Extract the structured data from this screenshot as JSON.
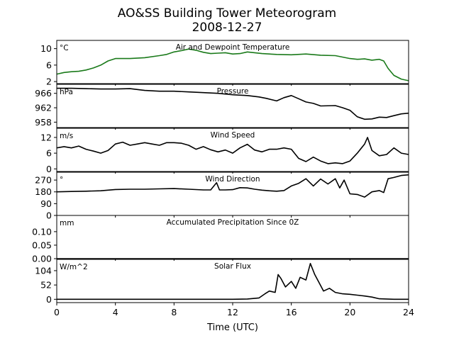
{
  "title_line1": "AO&SS Building Tower Meteorogram",
  "title_line2": "2008-12-27",
  "xlabel": "Time (UTC)",
  "x_ticks": [
    0,
    4,
    8,
    12,
    16,
    20,
    24
  ],
  "chart_data": [
    {
      "type": "line",
      "title": "Air and Dewpoint Temperature",
      "unit": "°C",
      "xlim": [
        0,
        24
      ],
      "ylim": [
        1.5,
        12
      ],
      "yticks": [
        2,
        6,
        10
      ],
      "series": [
        {
          "color": "#1a7a1a",
          "x": [
            0,
            0.5,
            1,
            1.5,
            2,
            2.5,
            3,
            3.5,
            4,
            4.5,
            5,
            6,
            7,
            7.5,
            8,
            8.5,
            9,
            9.5,
            10,
            10.5,
            11,
            11.5,
            12,
            12.5,
            13,
            13.5,
            14,
            15,
            16,
            17,
            18,
            19,
            20,
            20.5,
            21,
            21.5,
            22,
            22.3,
            22.6,
            23,
            23.5,
            24
          ],
          "y": [
            3.8,
            4.2,
            4.4,
            4.5,
            4.8,
            5.3,
            6.0,
            7.0,
            7.6,
            7.6,
            7.6,
            7.8,
            8.3,
            8.6,
            9.2,
            9.5,
            9.9,
            9.6,
            9.1,
            8.8,
            8.9,
            9.0,
            8.7,
            8.8,
            9.2,
            9.0,
            8.8,
            8.6,
            8.5,
            8.7,
            8.4,
            8.3,
            7.6,
            7.4,
            7.5,
            7.2,
            7.4,
            7.0,
            5.2,
            3.5,
            2.6,
            2.2
          ]
        }
      ]
    },
    {
      "type": "line",
      "title": "Pressure",
      "unit": "hPa",
      "xlim": [
        0,
        24
      ],
      "ylim": [
        956.5,
        968.5
      ],
      "yticks": [
        958,
        962,
        966
      ],
      "series": [
        {
          "color": "#000000",
          "x": [
            0,
            1,
            2,
            3,
            4,
            5,
            6,
            7,
            8,
            9,
            10,
            11,
            12,
            13,
            13.8,
            14.3,
            15,
            15.5,
            16,
            16.5,
            17,
            17.5,
            18,
            19,
            19.5,
            20,
            20.5,
            21,
            21.5,
            22,
            22.5,
            23,
            23.5,
            24
          ],
          "y": [
            967.4,
            967.4,
            967.3,
            967.2,
            967.2,
            967.3,
            966.8,
            966.6,
            966.6,
            966.4,
            966.2,
            966.0,
            965.6,
            965.4,
            965.0,
            964.6,
            963.9,
            964.8,
            965.4,
            964.5,
            963.6,
            963.2,
            962.5,
            962.6,
            962.0,
            961.3,
            959.5,
            958.8,
            958.9,
            959.4,
            959.3,
            959.8,
            960.3,
            960.5
          ]
        }
      ]
    },
    {
      "type": "line",
      "title": "Wind Speed",
      "unit": "m/s",
      "xlim": [
        0,
        24
      ],
      "ylim": [
        -1,
        15.5
      ],
      "yticks": [
        0,
        6,
        12
      ],
      "series": [
        {
          "color": "#000000",
          "x": [
            0,
            0.5,
            1,
            1.5,
            2,
            2.5,
            3,
            3.5,
            4,
            4.5,
            5,
            5.5,
            6,
            6.5,
            7,
            7.5,
            8,
            8.5,
            9,
            9.5,
            10,
            10.5,
            11,
            11.5,
            12,
            12.5,
            13,
            13.5,
            14,
            14.5,
            15,
            15.5,
            16,
            16.5,
            17,
            17.5,
            18,
            18.5,
            19,
            19.5,
            20,
            20.5,
            21,
            21.2,
            21.5,
            22,
            22.5,
            23,
            23.5,
            24
          ],
          "y": [
            8,
            8.5,
            8,
            8.7,
            7.5,
            6.8,
            6,
            7,
            9.5,
            10.2,
            9,
            9.5,
            10,
            9.5,
            9,
            10,
            10,
            9.8,
            9,
            7.5,
            8.5,
            7.3,
            6.5,
            7.2,
            6,
            8,
            9.4,
            7.2,
            6.5,
            7.5,
            7.5,
            8,
            7.5,
            4,
            2.8,
            4.5,
            3,
            2,
            2.3,
            2,
            3,
            6,
            9.5,
            12,
            7,
            5,
            5.5,
            8,
            6,
            5.5
          ]
        }
      ]
    },
    {
      "type": "line",
      "title": "Wind Direction",
      "unit": "°",
      "xlim": [
        0,
        24
      ],
      "ylim": [
        0,
        330
      ],
      "yticks": [
        0,
        90,
        180,
        270
      ],
      "series": [
        {
          "color": "#000000",
          "x": [
            0,
            1,
            2,
            3,
            4,
            5,
            6,
            7,
            8,
            9,
            10,
            10.5,
            10.9,
            11.1,
            11.5,
            12,
            12.5,
            13,
            13.5,
            14,
            14.5,
            15,
            15.5,
            16,
            16.5,
            17,
            17.5,
            18,
            18.5,
            19,
            19.3,
            19.6,
            20,
            20.5,
            21,
            21.5,
            22,
            22.3,
            22.6,
            23,
            23.5,
            24
          ],
          "y": [
            180,
            183,
            185,
            188,
            198,
            200,
            200,
            203,
            205,
            200,
            195,
            195,
            250,
            195,
            195,
            197,
            212,
            210,
            200,
            193,
            188,
            185,
            190,
            225,
            245,
            280,
            225,
            278,
            240,
            280,
            210,
            270,
            165,
            160,
            140,
            180,
            190,
            175,
            280,
            290,
            305,
            310
          ]
        }
      ]
    },
    {
      "type": "line",
      "title": "Accumulated Precipitation Since 0Z",
      "unit": "mm",
      "xlim": [
        0,
        24
      ],
      "ylim": [
        0,
        0.16
      ],
      "yticks": [
        0.0,
        0.05,
        0.1
      ],
      "series": [
        {
          "color": "#000000",
          "x": [
            0,
            24
          ],
          "y": [
            0,
            0
          ]
        }
      ]
    },
    {
      "type": "line",
      "title": "Solar Flux",
      "unit": "W/m^2",
      "xlim": [
        0,
        24
      ],
      "ylim": [
        -12,
        145
      ],
      "yticks": [
        0,
        52,
        104
      ],
      "series": [
        {
          "color": "#000000",
          "x": [
            0,
            2,
            4,
            6,
            8,
            10,
            12,
            13,
            13.8,
            14.2,
            14.5,
            14.9,
            15.1,
            15.3,
            15.6,
            16,
            16.3,
            16.6,
            17,
            17.3,
            17.6,
            17.9,
            18.2,
            18.6,
            19,
            19.5,
            20,
            20.5,
            21,
            21.5,
            22,
            23,
            24
          ],
          "y": [
            0,
            0,
            0,
            0,
            0,
            0,
            0,
            1,
            5,
            20,
            30,
            25,
            90,
            75,
            45,
            65,
            40,
            80,
            70,
            130,
            90,
            60,
            30,
            40,
            25,
            20,
            18,
            15,
            12,
            8,
            2,
            0,
            0
          ]
        }
      ]
    }
  ]
}
